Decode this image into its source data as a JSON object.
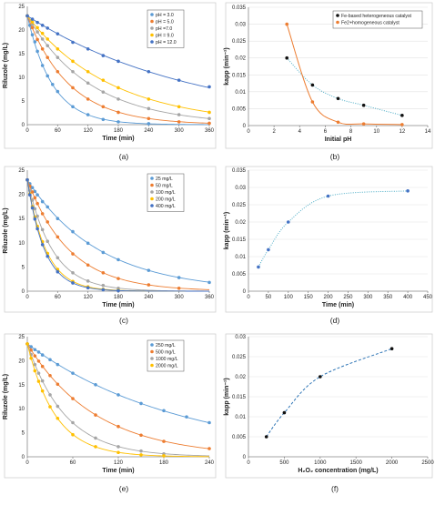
{
  "colors": {
    "ph3": "#5b9bd5",
    "ph5": "#ed7d31",
    "ph7": "#a5a5a5",
    "ph9": "#ffc000",
    "ph12": "#4472c4",
    "fit_blue": "#5b9bd5",
    "fit_orange": "#ed7d31",
    "point_black": "#111111",
    "dotted_teal": "#4bacc6",
    "dashed_blue": "#2e75b6"
  },
  "chart_data": [
    {
      "id": "a",
      "caption": "(a)",
      "type": "scatter",
      "xlabel": "Time (min)",
      "ylabel": "Riluzole (mg/L)",
      "xlim": [
        0,
        360
      ],
      "ylim": [
        0,
        25
      ],
      "xticks": [
        0,
        60,
        120,
        180,
        240,
        300,
        360
      ],
      "yticks": [
        0,
        5,
        10,
        15,
        20,
        25
      ],
      "legend": "top-right",
      "series": [
        {
          "name": "pH = 3.0",
          "color_key": "ph3",
          "k": 0.02,
          "y0": 23,
          "x": [
            0,
            5,
            10,
            15,
            20,
            30,
            40,
            50,
            60,
            90,
            120,
            150,
            180,
            240
          ],
          "y": [
            23,
            21,
            19,
            17.5,
            15.5,
            12.5,
            10.3,
            8.5,
            7,
            3.8,
            2.1,
            1.1,
            0.6,
            0.2
          ]
        },
        {
          "name": "pH = 5.0",
          "color_key": "ph5",
          "k": 0.012,
          "y0": 23,
          "x": [
            0,
            10,
            20,
            30,
            40,
            60,
            90,
            120,
            150,
            180,
            240,
            300,
            360
          ],
          "y": [
            23,
            20.5,
            18,
            16,
            14.2,
            11.2,
            7.8,
            5.4,
            3.8,
            2.6,
            1.3,
            0.6,
            0.3
          ]
        },
        {
          "name": "pH =7.0",
          "color_key": "ph7",
          "k": 0.008,
          "y0": 23,
          "x": [
            0,
            10,
            20,
            30,
            40,
            60,
            90,
            120,
            150,
            180,
            240,
            300,
            360
          ],
          "y": [
            23,
            21.2,
            19.6,
            18.1,
            16.7,
            14.2,
            11.2,
            8.8,
            6.9,
            5.4,
            3.4,
            2.1,
            1.3
          ]
        },
        {
          "name": "pH = 9.0",
          "color_key": "ph9",
          "k": 0.006,
          "y0": 23,
          "x": [
            0,
            10,
            20,
            30,
            40,
            60,
            90,
            120,
            150,
            180,
            240,
            300,
            360
          ],
          "y": [
            23,
            21.7,
            20.5,
            19.3,
            18.1,
            16,
            13.4,
            11.2,
            9.4,
            7.8,
            5.4,
            3.8,
            2.6
          ]
        },
        {
          "name": "pH = 12.0",
          "color_key": "ph12",
          "k": 0.003,
          "y0": 23,
          "x": [
            0,
            10,
            20,
            30,
            40,
            60,
            90,
            120,
            150,
            180,
            240,
            300,
            360
          ],
          "y": [
            23,
            22.3,
            21.6,
            21,
            20.4,
            19.2,
            17.4,
            16,
            14.6,
            13.4,
            11.2,
            9.4,
            8
          ]
        }
      ]
    },
    {
      "id": "b",
      "caption": "(b)",
      "type": "scatter",
      "xlabel": "Initial pH",
      "ylabel": "kapp (min⁻¹)",
      "xlim": [
        0,
        14
      ],
      "ylim": [
        0,
        0.035
      ],
      "xticks": [
        0,
        2,
        4,
        6,
        8,
        10,
        12,
        14
      ],
      "yticks": [
        0,
        0.005,
        0.01,
        0.015,
        0.02,
        0.025,
        0.03,
        0.035
      ],
      "legend": "top-right",
      "series": [
        {
          "name": "Fe-based heterogeneous catalyst",
          "color_key": "point_black",
          "fit_color_key": "dotted_teal",
          "x": [
            3,
            5,
            7,
            9,
            12
          ],
          "y": [
            0.02,
            0.012,
            0.008,
            0.006,
            0.003
          ]
        },
        {
          "name": "Fe2+homogeneous catalyst",
          "color_key": "ph5",
          "fit_color_key": "fit_orange",
          "x": [
            3,
            5,
            7,
            9,
            12
          ],
          "y": [
            0.03,
            0.007,
            0.001,
            0.0005,
            0.0003
          ]
        }
      ]
    },
    {
      "id": "c",
      "caption": "(c)",
      "type": "scatter",
      "xlabel": "Time (min)",
      "ylabel": "Riluzole (mg/L)",
      "xlim": [
        0,
        360
      ],
      "ylim": [
        0,
        25
      ],
      "xticks": [
        0,
        60,
        120,
        180,
        240,
        300,
        360
      ],
      "yticks": [
        0,
        5,
        10,
        15,
        20,
        25
      ],
      "legend": "top-right",
      "series": [
        {
          "name": "25 mg/L",
          "color_key": "ph3",
          "k": 0.007,
          "y0": 23,
          "x": [
            0,
            5,
            10,
            15,
            20,
            30,
            40,
            60,
            90,
            120,
            150,
            180,
            240,
            300,
            360
          ],
          "y": [
            23,
            22.2,
            21.4,
            20.6,
            19.9,
            18.5,
            17.4,
            15,
            12.3,
            9.9,
            8,
            6.5,
            4.3,
            2.8,
            1.8
          ]
        },
        {
          "name": "50 mg/L",
          "color_key": "ph5",
          "k": 0.012,
          "y0": 23,
          "x": [
            0,
            5,
            10,
            15,
            20,
            30,
            40,
            60,
            90,
            120,
            150,
            180,
            240,
            300
          ],
          "y": [
            23,
            21.7,
            20.5,
            19.3,
            18.1,
            16,
            14.3,
            11.2,
            7.7,
            5.4,
            3.8,
            2.6,
            1.3,
            0.6
          ]
        },
        {
          "name": "100 mg/L",
          "color_key": "ph7",
          "k": 0.02,
          "y0": 23,
          "x": [
            0,
            5,
            10,
            15,
            20,
            30,
            40,
            60,
            90,
            120,
            150,
            180
          ],
          "y": [
            23,
            20.8,
            18.8,
            17,
            15.5,
            12.7,
            10.3,
            6.9,
            3.8,
            2.1,
            1.2,
            0.6
          ]
        },
        {
          "name": "200 mg/L",
          "color_key": "ph9",
          "k": 0.027,
          "y0": 23,
          "x": [
            0,
            5,
            10,
            15,
            20,
            30,
            40,
            60,
            90,
            120,
            150,
            180
          ],
          "y": [
            23,
            20.1,
            17.5,
            15.3,
            13.4,
            10.2,
            7.8,
            4.5,
            2,
            0.9,
            0.4,
            0.2
          ]
        },
        {
          "name": "400 mg/L",
          "color_key": "ph12",
          "k": 0.029,
          "y0": 23,
          "x": [
            0,
            5,
            10,
            15,
            20,
            30,
            40,
            60,
            90,
            120,
            150,
            180
          ],
          "y": [
            23,
            19.9,
            17.2,
            14.9,
            12.9,
            9.6,
            7.2,
            4,
            1.7,
            0.7,
            0.3,
            0.1
          ]
        }
      ]
    },
    {
      "id": "d",
      "caption": "(d)",
      "type": "scatter",
      "xlabel": "Time (min)",
      "ylabel": "kapp (min⁻¹)",
      "xlim": [
        0,
        450
      ],
      "ylim": [
        0,
        0.035
      ],
      "xticks": [
        0,
        50,
        100,
        150,
        200,
        250,
        300,
        350,
        400,
        450
      ],
      "yticks": [
        0,
        0.005,
        0.01,
        0.015,
        0.02,
        0.025,
        0.03,
        0.035
      ],
      "legend": "none",
      "series": [
        {
          "color_key": "ph12",
          "fit_color_key": "dotted_teal",
          "x": [
            25,
            50,
            100,
            200,
            400
          ],
          "y": [
            0.007,
            0.012,
            0.02,
            0.0275,
            0.029
          ]
        }
      ]
    },
    {
      "id": "e",
      "caption": "(e)",
      "type": "scatter",
      "xlabel": "Time (min)",
      "ylabel": "Riluzole (mg/L)",
      "xlim": [
        0,
        240
      ],
      "ylim": [
        0,
        25
      ],
      "xticks": [
        0,
        60,
        120,
        180,
        240
      ],
      "yticks": [
        0,
        5,
        10,
        15,
        20,
        25
      ],
      "legend": "top-right",
      "series": [
        {
          "name": "250 mg/L",
          "color_key": "ph3",
          "k": 0.005,
          "y0": 23.5,
          "x": [
            0,
            5,
            10,
            15,
            20,
            30,
            40,
            60,
            90,
            120,
            150,
            180,
            210,
            240
          ],
          "y": [
            23.5,
            22.9,
            22.3,
            21.8,
            21.2,
            20.2,
            19.2,
            17.4,
            15,
            12.9,
            11.1,
            9.6,
            8.3,
            7.1
          ]
        },
        {
          "name": "500 mg/L",
          "color_key": "ph5",
          "k": 0.011,
          "y0": 23.5,
          "x": [
            0,
            5,
            10,
            15,
            20,
            30,
            40,
            60,
            90,
            120,
            150,
            180,
            240
          ],
          "y": [
            23.5,
            22.2,
            21,
            19.9,
            18.8,
            16.9,
            15.1,
            12.1,
            8.7,
            6.3,
            4.5,
            3.2,
            1.7
          ]
        },
        {
          "name": "1000 mg/L",
          "color_key": "ph7",
          "k": 0.02,
          "y0": 23.5,
          "x": [
            0,
            5,
            10,
            15,
            20,
            30,
            40,
            60,
            90,
            120,
            150,
            180
          ],
          "y": [
            23.5,
            21.3,
            19.2,
            17.4,
            15.8,
            12.9,
            10.5,
            7.1,
            3.9,
            2.1,
            1.2,
            0.6
          ]
        },
        {
          "name": "2000 mg/L",
          "color_key": "ph9",
          "k": 0.027,
          "y0": 23.5,
          "x": [
            0,
            5,
            10,
            15,
            20,
            30,
            40,
            60,
            90,
            120,
            150,
            180
          ],
          "y": [
            23.5,
            20.5,
            17.9,
            15.7,
            13.7,
            10.4,
            8,
            4.6,
            2.1,
            0.9,
            0.4,
            0.2
          ]
        }
      ]
    },
    {
      "id": "f",
      "caption": "(f)",
      "type": "scatter",
      "xlabel": "H₂O₂ concentration (mg/L)",
      "ylabel": "kapp (min⁻¹)",
      "xlim": [
        0,
        2500
      ],
      "ylim": [
        0,
        0.03
      ],
      "xticks": [
        0,
        500,
        1000,
        1500,
        2000,
        2500
      ],
      "yticks": [
        0,
        0.005,
        0.01,
        0.015,
        0.02,
        0.025,
        0.03
      ],
      "legend": "none",
      "series": [
        {
          "color_key": "point_black",
          "fit_color_key": "dashed_blue",
          "x": [
            250,
            500,
            1000,
            2000
          ],
          "y": [
            0.005,
            0.011,
            0.02,
            0.027
          ]
        }
      ]
    }
  ]
}
